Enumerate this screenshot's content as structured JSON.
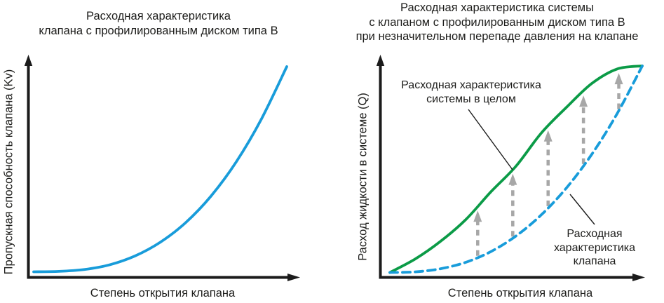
{
  "colors": {
    "valve_curve_blue": "#189cda",
    "system_curve_green": "#0b9b47",
    "gap_arrow_gray": "#a7a7a7",
    "axis_black": "#1b1b1b",
    "text": "#1d1d1b"
  },
  "left_chart": {
    "title": "Расходная характеристика\nклапана с профилированным диском типа В",
    "ylabel": "Пропускная способность клапана (Kv)",
    "xlabel": "Степень открытия клапана"
  },
  "right_chart": {
    "title": "Расходная характеристика системы\nс клапаном с профилированным диском типа В\nпри незначительном перепаде давления на клапане",
    "ylabel": "Расход жидкости в системе (Q)",
    "xlabel": "Степень открытия клапана",
    "annotation_system": "Расходная характеристика\nсистемы в целом",
    "annotation_valve": "Расходная\nхарактеристика\nклапана"
  },
  "chart_data": [
    {
      "type": "line",
      "title": "Расходная характеристика клапана с профилированным диском типа В",
      "xlabel": "Степень открытия клапана",
      "ylabel": "Пропускная способность клапана (Kv)",
      "x_range": [
        0,
        1
      ],
      "y_range": [
        0,
        1
      ],
      "grid": false,
      "axes_numeric": false,
      "series": [
        {
          "name": "Пропускная способность клапана (Kv)",
          "line_style": "solid",
          "color": "#189cda",
          "x": [
            0,
            0.1,
            0.2,
            0.3,
            0.4,
            0.5,
            0.6,
            0.7,
            0.8,
            0.9,
            1
          ],
          "y": [
            0,
            0.002,
            0.011,
            0.034,
            0.077,
            0.144,
            0.239,
            0.368,
            0.535,
            0.745,
            1
          ]
        }
      ]
    },
    {
      "type": "line",
      "title": "Расходная характеристика системы с клапаном с профилированным диском типа В при незначительном перепаде давления на клапане",
      "xlabel": "Степень открытия клапана",
      "ylabel": "Расход жидкости в системе (Q)",
      "x_range": [
        0,
        1
      ],
      "y_range": [
        0,
        1
      ],
      "grid": false,
      "axes_numeric": false,
      "series": [
        {
          "name": "Расходная характеристика системы в целом",
          "line_style": "solid",
          "color": "#0b9b47",
          "x": [
            0,
            0.1,
            0.2,
            0.3,
            0.4,
            0.5,
            0.6,
            0.7,
            0.8,
            0.9,
            1
          ],
          "y": [
            0,
            0.065,
            0.15,
            0.255,
            0.39,
            0.515,
            0.675,
            0.8,
            0.915,
            0.985,
            1
          ]
        },
        {
          "name": "Расходная характеристика клапана",
          "line_style": "dashed",
          "color": "#189cda",
          "x": [
            0,
            0.1,
            0.2,
            0.3,
            0.4,
            0.5,
            0.6,
            0.7,
            0.8,
            0.9,
            1
          ],
          "y": [
            0,
            0.003,
            0.018,
            0.049,
            0.101,
            0.177,
            0.279,
            0.41,
            0.572,
            0.768,
            1
          ]
        }
      ],
      "gap_arrows": {
        "description_color": "#a7a7a7",
        "from_series": "Расходная характеристика клапана",
        "to_series": "Расходная характеристика системы в целом",
        "openings": [
          0.348,
          0.487,
          0.627,
          0.767,
          0.907
        ]
      },
      "annotations": [
        "Расходная характеристика системы в целом",
        "Расходная характеристика клапана"
      ]
    }
  ]
}
